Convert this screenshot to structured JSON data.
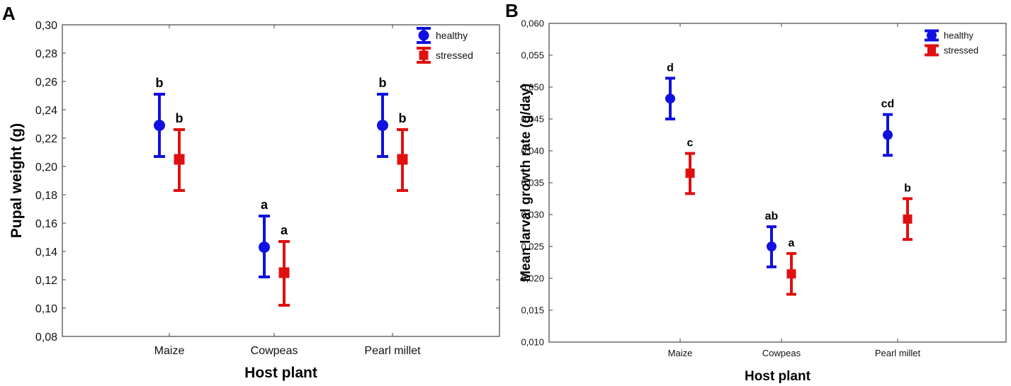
{
  "chart_data": [
    {
      "type": "scatter",
      "panel_label": "A",
      "title": "",
      "xlabel": "Host plant",
      "ylabel": "Pupal weight (g)",
      "categories": [
        "Maize",
        "Cowpeas",
        "Pearl millet"
      ],
      "ylim": [
        0.08,
        0.3
      ],
      "yticks": [
        "0,08",
        "0,10",
        "0,12",
        "0,14",
        "0,16",
        "0,18",
        "0,20",
        "0,22",
        "0,24",
        "0,26",
        "0,28",
        "0,30"
      ],
      "legend_position": "top-right",
      "series": [
        {
          "name": "healthy",
          "color": "#1010e0",
          "marker": "circle",
          "values": [
            0.229,
            0.143,
            0.229
          ],
          "lower": [
            0.207,
            0.122,
            0.207
          ],
          "upper": [
            0.251,
            0.165,
            0.251
          ],
          "labels": [
            "b",
            "a",
            "b"
          ]
        },
        {
          "name": "stressed",
          "color": "#e01010",
          "marker": "square",
          "values": [
            0.205,
            0.125,
            0.205
          ],
          "lower": [
            0.183,
            0.102,
            0.183
          ],
          "upper": [
            0.226,
            0.147,
            0.226
          ],
          "labels": [
            "b",
            "a",
            "b"
          ]
        }
      ]
    },
    {
      "type": "scatter",
      "panel_label": "B",
      "title": "",
      "xlabel": "Host plant",
      "ylabel": "Mean larval growth rate (g/day)",
      "categories": [
        "Maize",
        "Cowpeas",
        "Pearl millet"
      ],
      "ylim": [
        0.01,
        0.06
      ],
      "yticks": [
        "0,010",
        "0,015",
        "0,020",
        "0,025",
        "0,030",
        "0,035",
        "0,040",
        "0,045",
        "0,050",
        "0,055",
        "0,060"
      ],
      "legend_position": "top-right",
      "series": [
        {
          "name": "healthy",
          "color": "#1010e0",
          "marker": "circle",
          "values": [
            0.0482,
            0.025,
            0.0425
          ],
          "lower": [
            0.045,
            0.0218,
            0.0393
          ],
          "upper": [
            0.0514,
            0.0281,
            0.0457
          ],
          "labels": [
            "d",
            "ab",
            "cd"
          ]
        },
        {
          "name": "stressed",
          "color": "#e01010",
          "marker": "square",
          "values": [
            0.0365,
            0.0207,
            0.0293
          ],
          "lower": [
            0.0333,
            0.0175,
            0.0261
          ],
          "upper": [
            0.0396,
            0.0239,
            0.0325
          ],
          "labels": [
            "c",
            "a",
            "b"
          ]
        }
      ]
    }
  ]
}
